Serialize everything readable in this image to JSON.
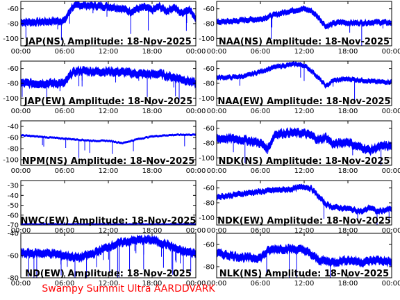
{
  "footer": "Swampy Summit Ultra AARDDVARK",
  "colors": {
    "trace": "#0000ff",
    "axis": "#000000",
    "footer": "#ff0000",
    "background": "#ffffff"
  },
  "chart_data": [
    {
      "type": "line",
      "title": "JAP(NS) Amplitude: 18-Nov-2025",
      "xticks": [
        "00:00",
        "06:00",
        "12:00",
        "18:00",
        "00:00"
      ],
      "ylim": [
        -110,
        -50
      ],
      "yticks": [
        -100,
        -80,
        -60
      ],
      "series": [
        {
          "x_hours": [
            0,
            2,
            4,
            6,
            7,
            8,
            10,
            12,
            13,
            14,
            15,
            16,
            17,
            18,
            19,
            20,
            21,
            22,
            23,
            24
          ],
          "values": [
            -78,
            -78,
            -77,
            -76,
            -58,
            -55,
            -56,
            -57,
            -58,
            -60,
            -64,
            -60,
            -58,
            -62,
            -57,
            -63,
            -58,
            -66,
            -60,
            -72
          ],
          "spread": 8,
          "dropouts": 10
        }
      ]
    },
    {
      "type": "line",
      "title": "NAA(NS) Amplitude: 18-Nov-2025",
      "xticks": [
        "00:00",
        "06:00",
        "12:00",
        "18:00",
        "00:00"
      ],
      "ylim": [
        -110,
        -50
      ],
      "yticks": [
        -100,
        -80,
        -60
      ],
      "series": [
        {
          "x_hours": [
            0,
            2,
            4,
            6,
            8,
            10,
            12,
            13,
            14,
            15,
            16,
            17,
            18,
            20,
            22,
            24
          ],
          "values": [
            -78,
            -77,
            -75,
            -74,
            -68,
            -63,
            -60,
            -63,
            -72,
            -84,
            -80,
            -78,
            -79,
            -79,
            -78,
            -79
          ],
          "spread": 6,
          "dropouts": 5
        }
      ]
    },
    {
      "type": "line",
      "title": "JAP(EW) Amplitude: 18-Nov-2025",
      "xticks": [
        "00:00",
        "06:00",
        "12:00",
        "18:00",
        "00:00"
      ],
      "ylim": [
        -110,
        -50
      ],
      "yticks": [
        -100,
        -80,
        -60
      ],
      "series": [
        {
          "x_hours": [
            0,
            2,
            4,
            6,
            7,
            8,
            10,
            12,
            14,
            16,
            18,
            19,
            20,
            22,
            24
          ],
          "values": [
            -80,
            -80,
            -80,
            -80,
            -66,
            -63,
            -64,
            -64,
            -65,
            -67,
            -68,
            -67,
            -70,
            -74,
            -80
          ],
          "spread": 9,
          "dropouts": 12
        }
      ]
    },
    {
      "type": "line",
      "title": "NAA(EW) Amplitude: 18-Nov-2025",
      "xticks": [
        "00:00",
        "06:00",
        "12:00",
        "18:00",
        "00:00"
      ],
      "ylim": [
        -110,
        -50
      ],
      "yticks": [
        -100,
        -80,
        -60
      ],
      "series": [
        {
          "x_hours": [
            0,
            2,
            4,
            6,
            8,
            10,
            11,
            12,
            13,
            14,
            15,
            16,
            18,
            20,
            22,
            24
          ],
          "values": [
            -72,
            -72,
            -70,
            -64,
            -58,
            -55,
            -54,
            -56,
            -63,
            -73,
            -84,
            -76,
            -74,
            -76,
            -78,
            -78
          ],
          "spread": 5,
          "dropouts": 5
        }
      ]
    },
    {
      "type": "line",
      "title": "NPM(NS) Amplitude: 18-Nov-2025",
      "xticks": [
        "00:00",
        "06:00",
        "12:00",
        "18:00",
        "00:00"
      ],
      "ylim": [
        -110,
        -30
      ],
      "yticks": [
        -100,
        -80,
        -60,
        -40
      ],
      "series": [
        {
          "x_hours": [
            0,
            2,
            4,
            6,
            8,
            10,
            12,
            14,
            16,
            18,
            20,
            22,
            24
          ],
          "values": [
            -56,
            -58,
            -60,
            -62,
            -64,
            -66,
            -66,
            -70,
            -63,
            -58,
            -56,
            -55,
            -55
          ],
          "spread": 3,
          "dropouts": 9
        }
      ]
    },
    {
      "type": "line",
      "title": "NDK(NS) Amplitude: 18-Nov-2025",
      "xticks": [
        "00:00",
        "06:00",
        "12:00",
        "18:00",
        "00:00"
      ],
      "ylim": [
        -110,
        -50
      ],
      "yticks": [
        -100,
        -80,
        -60
      ],
      "series": [
        {
          "x_hours": [
            0,
            2,
            4,
            6,
            7,
            8,
            10,
            12,
            13,
            14,
            15,
            16,
            17,
            18,
            19,
            20,
            21,
            22,
            23,
            24
          ],
          "values": [
            -74,
            -74,
            -76,
            -80,
            -88,
            -68,
            -66,
            -67,
            -70,
            -76,
            -72,
            -82,
            -80,
            -78,
            -84,
            -86,
            -90,
            -86,
            -84,
            -84
          ],
          "spread": 9,
          "dropouts": 4
        }
      ]
    },
    {
      "type": "line",
      "title": "NWC(EW) Amplitude: 18-Nov-2025",
      "xticks": [
        "00:00",
        "06:00",
        "12:00",
        "18:00",
        "00:00"
      ],
      "ylim": [
        -70,
        -25
      ],
      "yticks": [
        -70,
        -60,
        -50,
        -40,
        -30
      ],
      "series": [
        {
          "x_hours": [
            0,
            24
          ],
          "values": [
            -69,
            -69
          ],
          "spread": 1,
          "dropouts": 0
        }
      ]
    },
    {
      "type": "line",
      "title": "NDK(EW) Amplitude: 18-Nov-2025",
      "xticks": [
        "00:00",
        "06:00",
        "12:00",
        "18:00",
        "00:00"
      ],
      "ylim": [
        -110,
        -50
      ],
      "yticks": [
        -100,
        -80,
        -60
      ],
      "series": [
        {
          "x_hours": [
            0,
            2,
            4,
            6,
            8,
            10,
            12,
            13,
            14,
            15,
            16,
            18,
            20,
            21,
            22,
            23,
            24
          ],
          "values": [
            -72,
            -70,
            -67,
            -65,
            -63,
            -62,
            -58,
            -61,
            -72,
            -82,
            -86,
            -88,
            -92,
            -86,
            -92,
            -90,
            -88
          ],
          "spread": 6,
          "dropouts": 4
        }
      ]
    },
    {
      "type": "line",
      "title": "ND(EW) Amplitude: 18-Nov-2025",
      "xticks": [
        "00:00",
        "06:00",
        "12:00",
        "18:00",
        "00:00"
      ],
      "ylim": [
        -80,
        -40
      ],
      "yticks": [
        -80,
        -60,
        -40
      ],
      "series": [
        {
          "x_hours": [
            0,
            2,
            4,
            6,
            8,
            10,
            12,
            14,
            16,
            18,
            20,
            22,
            24
          ],
          "values": [
            -58,
            -58,
            -58,
            -60,
            -62,
            -58,
            -52,
            -48,
            -46,
            -46,
            -50,
            -56,
            -58
          ],
          "spread": 6,
          "dropouts": 30
        }
      ]
    },
    {
      "type": "line",
      "title": "NLK(NS) Amplitude: 18-Nov-2025",
      "xticks": [
        "00:00",
        "06:00",
        "12:00",
        "18:00",
        "00:00"
      ],
      "ylim": [
        -90,
        -50
      ],
      "yticks": [
        -80,
        -60
      ],
      "series": [
        {
          "x_hours": [
            0,
            2,
            4,
            6,
            7,
            8,
            10,
            12,
            14,
            16,
            18,
            20,
            22,
            24
          ],
          "values": [
            -68,
            -70,
            -72,
            -72,
            -66,
            -64,
            -64,
            -65,
            -74,
            -76,
            -74,
            -76,
            -74,
            -76
          ],
          "spread": 6,
          "dropouts": 4
        }
      ]
    }
  ]
}
